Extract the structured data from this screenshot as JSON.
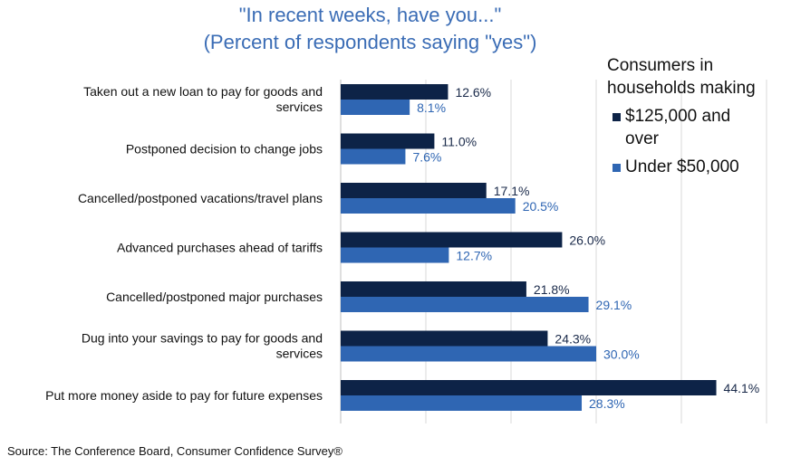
{
  "title_line1": "\"In recent weeks, have you...\"",
  "title_line2": "(Percent of respondents saying \"yes\")",
  "legend": {
    "title": [
      "Consumers in",
      "households making"
    ],
    "items": [
      {
        "label": [
          "$125,000 and",
          "over"
        ],
        "color": "#0d2347"
      },
      {
        "label": [
          "Under $50,000"
        ],
        "color": "#2f66b3"
      }
    ]
  },
  "source": "Source: The Conference Board, Consumer Confidence Survey®",
  "chart_data": {
    "type": "bar",
    "orientation": "horizontal",
    "title": "\"In recent weeks, have you...\" (Percent of respondents saying \"yes\")",
    "categories": [
      [
        "Taken out a new loan to pay for goods and",
        "services"
      ],
      [
        "Postponed decision to change jobs"
      ],
      [
        "Cancelled/postponed vacations/travel plans"
      ],
      [
        "Advanced purchases ahead of tariffs"
      ],
      [
        "Cancelled/postponed major purchases"
      ],
      [
        "Dug into your savings to pay for goods and",
        "services"
      ],
      [
        "Put more money aside to pay for future expenses"
      ]
    ],
    "series": [
      {
        "name": "$125,000 and over",
        "color": "#0d2347",
        "label_color": "#1a2a4a",
        "values": [
          12.6,
          11.0,
          17.1,
          26.0,
          21.8,
          24.3,
          44.1
        ],
        "labels": [
          "12.6%",
          "11.0%",
          "17.1%",
          "26.0%",
          "21.8%",
          "24.3%",
          "44.1%"
        ]
      },
      {
        "name": "Under $50,000",
        "color": "#2f66b3",
        "label_color": "#2f66b3",
        "values": [
          8.1,
          7.6,
          20.5,
          12.7,
          29.1,
          30.0,
          28.3
        ],
        "labels": [
          "8.1%",
          "7.6%",
          "20.5%",
          "12.7%",
          "29.1%",
          "30.0%",
          "28.3%"
        ]
      }
    ],
    "xlim": [
      0,
      50
    ],
    "gridlines": [
      0,
      10,
      20,
      30,
      40,
      50
    ],
    "grid": true,
    "legend_position": "top-right"
  }
}
